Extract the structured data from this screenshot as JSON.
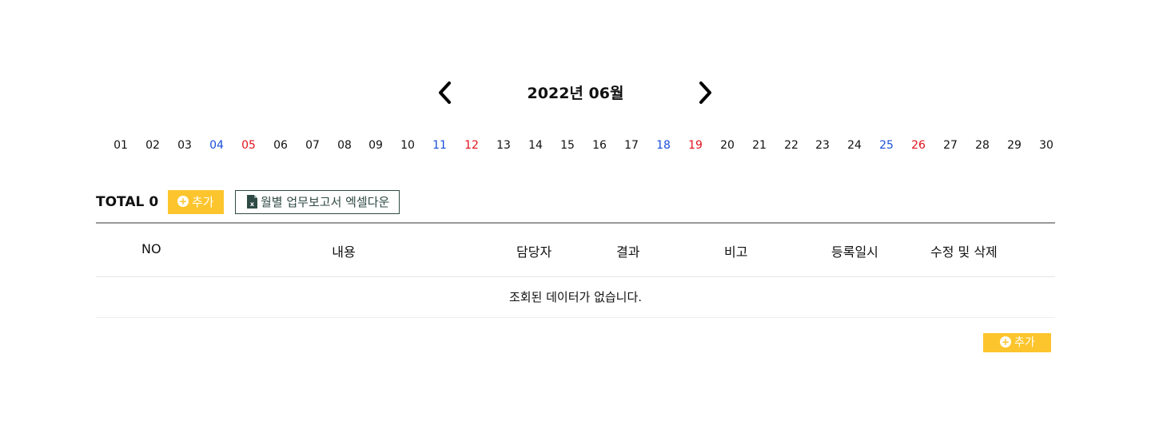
{
  "calendar": {
    "title": "2022년 06월",
    "prev_icon": "chevron-left-icon",
    "next_icon": "chevron-right-icon",
    "days": [
      {
        "label": "01",
        "type": "weekday"
      },
      {
        "label": "02",
        "type": "weekday"
      },
      {
        "label": "03",
        "type": "weekday"
      },
      {
        "label": "04",
        "type": "sat"
      },
      {
        "label": "05",
        "type": "sun"
      },
      {
        "label": "06",
        "type": "weekday"
      },
      {
        "label": "07",
        "type": "weekday"
      },
      {
        "label": "08",
        "type": "weekday"
      },
      {
        "label": "09",
        "type": "weekday"
      },
      {
        "label": "10",
        "type": "weekday"
      },
      {
        "label": "11",
        "type": "sat"
      },
      {
        "label": "12",
        "type": "sun"
      },
      {
        "label": "13",
        "type": "weekday"
      },
      {
        "label": "14",
        "type": "weekday"
      },
      {
        "label": "15",
        "type": "weekday"
      },
      {
        "label": "16",
        "type": "weekday"
      },
      {
        "label": "17",
        "type": "weekday"
      },
      {
        "label": "18",
        "type": "sat"
      },
      {
        "label": "19",
        "type": "sun"
      },
      {
        "label": "20",
        "type": "weekday"
      },
      {
        "label": "21",
        "type": "weekday"
      },
      {
        "label": "22",
        "type": "weekday"
      },
      {
        "label": "23",
        "type": "weekday"
      },
      {
        "label": "24",
        "type": "weekday"
      },
      {
        "label": "25",
        "type": "sat"
      },
      {
        "label": "26",
        "type": "sun"
      },
      {
        "label": "27",
        "type": "weekday"
      },
      {
        "label": "28",
        "type": "weekday"
      },
      {
        "label": "29",
        "type": "weekday"
      },
      {
        "label": "30",
        "type": "weekday"
      }
    ]
  },
  "toolbar": {
    "total_label": "TOTAL",
    "total_count": "0",
    "add_label": "추가",
    "excel_label": "월별 업무보고서 엑셀다운",
    "excel_icon": "excel-file-icon",
    "add_icon": "plus-circle-icon"
  },
  "table": {
    "headers": [
      "NO",
      "내용",
      "담당자",
      "결과",
      "비고",
      "등록일시",
      "수정 및 삭제"
    ],
    "empty_message": "조회된 데이터가 없습니다."
  },
  "footer": {
    "add_label": "추가"
  },
  "colors": {
    "accent": "#fdc52d",
    "saturday": "#1a4fd8",
    "sunday": "#e0121b",
    "excel_border": "#2f4a44"
  }
}
